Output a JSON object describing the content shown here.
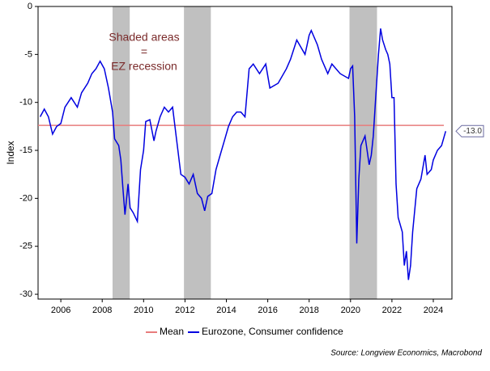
{
  "chart_data": {
    "type": "line",
    "y_label": "Index",
    "annotation": [
      "Shaded areas",
      "=",
      "EZ recession"
    ],
    "source": "Source: Longview Economics, Macrobond",
    "xlim": [
      2004.9,
      2024.9
    ],
    "xticks": [
      2006,
      2008,
      2010,
      2012,
      2014,
      2016,
      2018,
      2020,
      2022,
      2024
    ],
    "ylim": [
      -30.5,
      0
    ],
    "yticks": [
      0,
      -5,
      -10,
      -15,
      -20,
      -25,
      -30
    ],
    "shaded_regions": [
      [
        2008.5,
        2009.33
      ],
      [
        2011.95,
        2013.25
      ],
      [
        2019.95,
        2021.28
      ]
    ],
    "shade_color": "#c0c0c0",
    "mean": {
      "name": "Mean",
      "value": -12.4,
      "color": "#e87c7c"
    },
    "end_label": {
      "value": -13.0,
      "label": "-13.0"
    },
    "x": [
      2005.0,
      2005.2,
      2005.4,
      2005.6,
      2005.8,
      2006.0,
      2006.2,
      2006.5,
      2006.8,
      2007.0,
      2007.3,
      2007.5,
      2007.7,
      2007.9,
      2008.1,
      2008.3,
      2008.5,
      2008.6,
      2008.8,
      2008.9,
      2009.0,
      2009.1,
      2009.25,
      2009.35,
      2009.5,
      2009.7,
      2009.85,
      2010.0,
      2010.1,
      2010.3,
      2010.5,
      2010.6,
      2010.8,
      2011.0,
      2011.2,
      2011.4,
      2011.6,
      2011.8,
      2012.0,
      2012.2,
      2012.4,
      2012.6,
      2012.8,
      2012.95,
      2013.1,
      2013.3,
      2013.5,
      2013.7,
      2013.9,
      2014.1,
      2014.3,
      2014.5,
      2014.7,
      2014.9,
      2015.1,
      2015.3,
      2015.6,
      2015.9,
      2016.1,
      2016.5,
      2016.9,
      2017.1,
      2017.4,
      2017.8,
      2017.9,
      2018.0,
      2018.1,
      2018.4,
      2018.6,
      2018.9,
      2019.1,
      2019.5,
      2019.9,
      2020.0,
      2020.1,
      2020.2,
      2020.3,
      2020.4,
      2020.5,
      2020.7,
      2020.9,
      2021.0,
      2021.1,
      2021.2,
      2021.35,
      2021.45,
      2021.55,
      2021.7,
      2021.8,
      2021.9,
      2022.0,
      2022.1,
      2022.2,
      2022.3,
      2022.5,
      2022.6,
      2022.7,
      2022.8,
      2022.9,
      2023.0,
      2023.2,
      2023.4,
      2023.6,
      2023.7,
      2023.9,
      2024.0,
      2024.2,
      2024.4,
      2024.6
    ],
    "series": [
      {
        "name": "Eurozone, Consumer confidence",
        "color": "#0000e0",
        "values": [
          -11.5,
          -10.7,
          -11.5,
          -13.3,
          -12.5,
          -12.2,
          -10.5,
          -9.5,
          -10.5,
          -9.0,
          -8.0,
          -7.0,
          -6.5,
          -5.7,
          -6.5,
          -8.5,
          -11.0,
          -13.8,
          -14.5,
          -16.0,
          -19.0,
          -21.7,
          -18.5,
          -21.0,
          -21.5,
          -22.4,
          -17.0,
          -15.0,
          -12.0,
          -11.8,
          -14.0,
          -13.0,
          -11.5,
          -10.5,
          -11.0,
          -10.5,
          -14.0,
          -17.5,
          -17.8,
          -18.5,
          -17.5,
          -19.5,
          -20.0,
          -21.3,
          -19.8,
          -19.5,
          -17.0,
          -15.5,
          -14.0,
          -12.5,
          -11.5,
          -11.0,
          -11.0,
          -11.5,
          -6.5,
          -6.0,
          -7.0,
          -6.0,
          -8.5,
          -8.0,
          -6.5,
          -5.5,
          -3.5,
          -5.0,
          -4.0,
          -3.0,
          -2.5,
          -4.0,
          -5.5,
          -7.0,
          -6.0,
          -7.0,
          -7.5,
          -6.5,
          -6.2,
          -11.5,
          -24.7,
          -18.0,
          -14.5,
          -13.5,
          -16.5,
          -15.5,
          -13.5,
          -10.0,
          -5.0,
          -2.3,
          -3.5,
          -4.5,
          -5.0,
          -6.0,
          -9.5,
          -9.5,
          -18.5,
          -22.0,
          -23.5,
          -27.0,
          -25.5,
          -28.5,
          -27.0,
          -23.5,
          -19.0,
          -18.0,
          -15.5,
          -17.5,
          -17.0,
          -16.0,
          -15.0,
          -14.5,
          -13.0
        ]
      }
    ]
  }
}
